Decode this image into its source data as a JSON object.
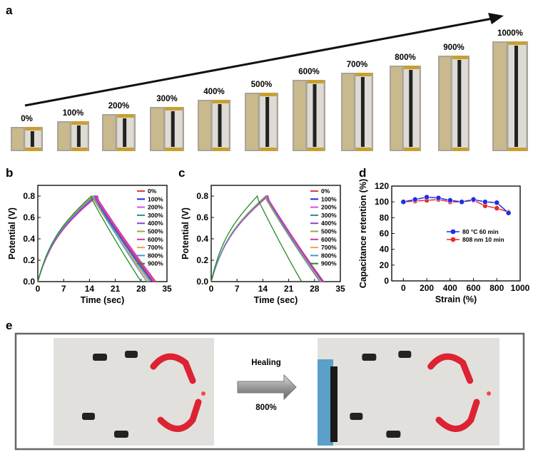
{
  "panel_labels": {
    "a": "a",
    "b": "b",
    "c": "c",
    "d": "d",
    "e": "e"
  },
  "panel_a": {
    "strain_labels": [
      "0%",
      "100%",
      "200%",
      "300%",
      "400%",
      "500%",
      "600%",
      "700%",
      "800%",
      "900%",
      "1000%"
    ]
  },
  "panel_e": {
    "arrow_label": "Healing",
    "arrow_sublabel": "800%"
  },
  "colors": {
    "0%": "#e23a3a",
    "100%": "#2424e0",
    "200%": "#e04ce0",
    "300%": "#2a8c9c",
    "400%": "#8a44d4",
    "500%": "#a4a440",
    "600%": "#d4329a",
    "700%": "#f2a348",
    "800%": "#4a92d4",
    "900%": "#268a26"
  },
  "chart_data": [
    {
      "type": "line",
      "panel": "b",
      "xlabel": "Time (sec)",
      "ylabel": "Potential (V)",
      "xlim": [
        0,
        35
      ],
      "ylim": [
        0,
        0.9
      ],
      "xticks": [
        "0",
        "7",
        "14",
        "21",
        "28",
        "35"
      ],
      "yticks": [
        "0.0",
        "0.2",
        "0.4",
        "0.6",
        "0.8"
      ],
      "legend_position": "top-right",
      "series": [
        {
          "name": "0%",
          "peak_time": 15.8,
          "end_time": 31.5,
          "peak_v": 0.8
        },
        {
          "name": "100%",
          "peak_time": 15.5,
          "end_time": 31.0,
          "peak_v": 0.8
        },
        {
          "name": "200%",
          "peak_time": 16.0,
          "end_time": 31.8,
          "peak_v": 0.8
        },
        {
          "name": "300%",
          "peak_time": 15.3,
          "end_time": 30.6,
          "peak_v": 0.8
        },
        {
          "name": "400%",
          "peak_time": 15.6,
          "end_time": 31.2,
          "peak_v": 0.8
        },
        {
          "name": "500%",
          "peak_time": 14.9,
          "end_time": 30.2,
          "peak_v": 0.8
        },
        {
          "name": "600%",
          "peak_time": 16.2,
          "end_time": 32.0,
          "peak_v": 0.8
        },
        {
          "name": "700%",
          "peak_time": 15.1,
          "end_time": 30.0,
          "peak_v": 0.8
        },
        {
          "name": "800%",
          "peak_time": 15.3,
          "end_time": 29.5,
          "peak_v": 0.8
        },
        {
          "name": "900%",
          "peak_time": 14.5,
          "end_time": 28.0,
          "peak_v": 0.8
        }
      ]
    },
    {
      "type": "line",
      "panel": "c",
      "xlabel": "Time (sec)",
      "ylabel": "Potential (V)",
      "xlim": [
        0,
        35
      ],
      "ylim": [
        0,
        0.9
      ],
      "xticks": [
        "0",
        "7",
        "14",
        "21",
        "28",
        "35"
      ],
      "yticks": [
        "0.0",
        "0.2",
        "0.4",
        "0.6",
        "0.8"
      ],
      "legend_position": "top-right",
      "series": [
        {
          "name": "0%",
          "peak_time": 15.2,
          "end_time": 30.0,
          "peak_v": 0.8
        },
        {
          "name": "100%",
          "peak_time": 15.0,
          "end_time": 30.2,
          "peak_v": 0.8
        },
        {
          "name": "200%",
          "peak_time": 15.3,
          "end_time": 30.4,
          "peak_v": 0.8
        },
        {
          "name": "300%",
          "peak_time": 14.8,
          "end_time": 29.6,
          "peak_v": 0.8
        },
        {
          "name": "400%",
          "peak_time": 15.1,
          "end_time": 30.0,
          "peak_v": 0.8
        },
        {
          "name": "500%",
          "peak_time": 14.7,
          "end_time": 29.4,
          "peak_v": 0.8
        },
        {
          "name": "600%",
          "peak_time": 15.4,
          "end_time": 30.5,
          "peak_v": 0.8
        },
        {
          "name": "700%",
          "peak_time": 14.9,
          "end_time": 29.8,
          "peak_v": 0.8
        },
        {
          "name": "800%",
          "peak_time": 15.0,
          "end_time": 29.5,
          "peak_v": 0.8
        },
        {
          "name": "900%",
          "peak_time": 12.5,
          "end_time": 24.5,
          "peak_v": 0.8
        }
      ]
    },
    {
      "type": "line",
      "panel": "d",
      "xlabel": "Strain (%)",
      "ylabel": "Capacitance retention (%)",
      "xlim": [
        -100,
        1000
      ],
      "ylim": [
        0,
        120
      ],
      "xticks": [
        "0",
        "200",
        "400",
        "600",
        "800",
        "1000"
      ],
      "yticks": [
        "0",
        "20",
        "40",
        "60",
        "80",
        "100",
        "120"
      ],
      "legend_position": "center-right",
      "x": [
        0,
        100,
        200,
        300,
        400,
        500,
        600,
        700,
        800,
        900
      ],
      "series": [
        {
          "name": "80 °C   60 min",
          "color": "#1f2fe0",
          "values": [
            100,
            103,
            106,
            105,
            102,
            100,
            103,
            100,
            99,
            86
          ]
        },
        {
          "name": "808 nm   10 min",
          "color": "#e82a2a",
          "values": [
            100,
            101,
            102,
            103,
            100,
            100,
            102,
            95,
            92,
            87
          ]
        }
      ]
    }
  ]
}
